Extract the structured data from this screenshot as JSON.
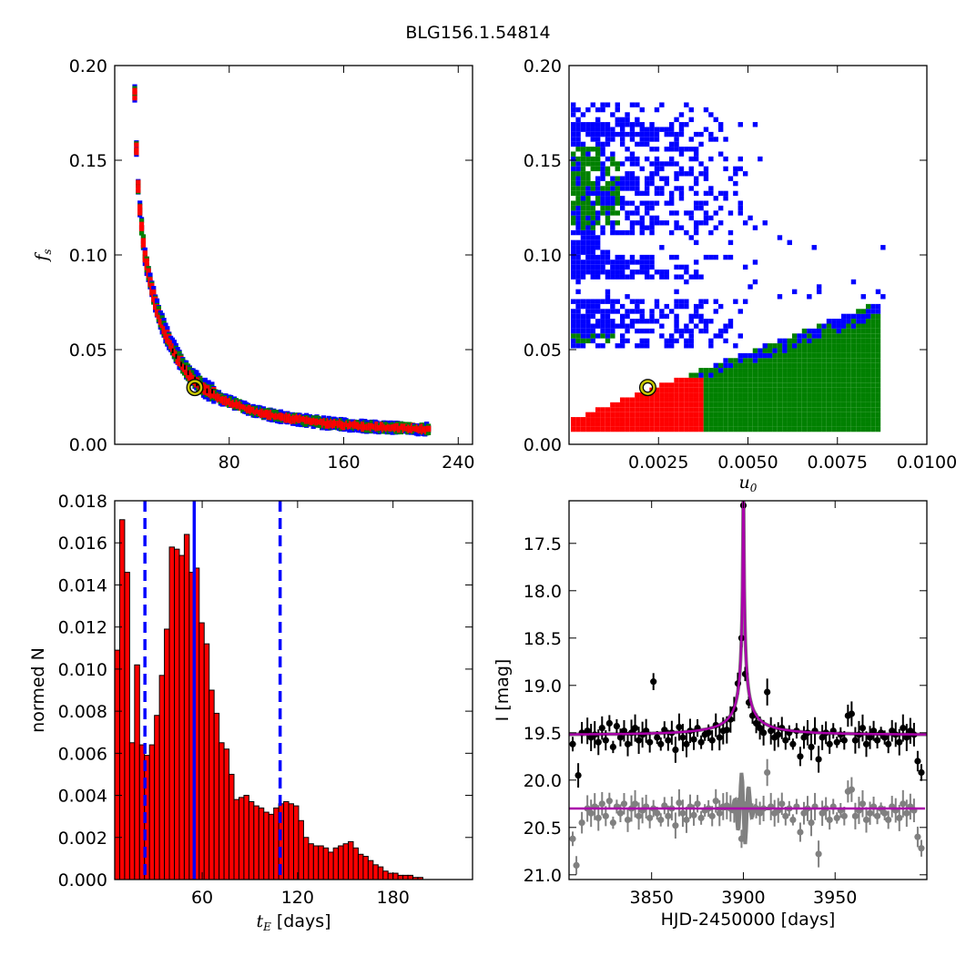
{
  "figure": {
    "title": "BLG156.1.54814"
  },
  "chart_data": [
    {
      "panel": "top-left",
      "type": "heatmap",
      "xlabel": "",
      "ylabel": "f_s",
      "xlim": [
        0,
        250
      ],
      "ylim": [
        0,
        0.2
      ],
      "xticks": [
        80,
        160,
        240
      ],
      "yticks": [
        0.0,
        0.05,
        0.1,
        0.15,
        0.2
      ],
      "ytick_labels": [
        "0.00",
        "0.05",
        "0.10",
        "0.15",
        "0.20"
      ],
      "description_colors": {
        "sigma3": "#0000ff",
        "sigma2": "#008000",
        "sigma1": "#ff0000",
        "core": "#000000"
      },
      "best_fit": {
        "x": 56,
        "y": 0.03
      },
      "ridge": [
        {
          "x": 14,
          "y": 0.185
        },
        {
          "x": 15,
          "y": 0.16
        },
        {
          "x": 16,
          "y": 0.14
        },
        {
          "x": 18,
          "y": 0.12
        },
        {
          "x": 21,
          "y": 0.1
        },
        {
          "x": 25,
          "y": 0.085
        },
        {
          "x": 30,
          "y": 0.07
        },
        {
          "x": 36,
          "y": 0.058
        },
        {
          "x": 44,
          "y": 0.046
        },
        {
          "x": 52,
          "y": 0.037
        },
        {
          "x": 62,
          "y": 0.03
        },
        {
          "x": 75,
          "y": 0.024
        },
        {
          "x": 95,
          "y": 0.018
        },
        {
          "x": 120,
          "y": 0.014
        },
        {
          "x": 150,
          "y": 0.011
        },
        {
          "x": 185,
          "y": 0.009
        },
        {
          "x": 220,
          "y": 0.008
        }
      ]
    },
    {
      "panel": "top-right",
      "type": "heatmap",
      "xlabel": "u_0",
      "ylabel": "",
      "xlim": [
        0,
        0.01
      ],
      "ylim": [
        0,
        0.2
      ],
      "xticks": [
        0.0025,
        0.005,
        0.0075,
        0.01
      ],
      "xtick_labels": [
        "0.0025",
        "0.0050",
        "0.0075",
        "0.0100"
      ],
      "yticks": [
        0.0,
        0.05,
        0.1,
        0.15,
        0.2
      ],
      "ytick_labels": [
        "0.00",
        "0.05",
        "0.10",
        "0.15",
        "0.20"
      ],
      "best_fit": {
        "x": 0.0022,
        "y": 0.03
      }
    },
    {
      "panel": "bottom-left",
      "type": "bar",
      "xlabel": "t_E [days]",
      "xlabel_unit": "[days]",
      "ylabel": "normed N",
      "xlim": [
        5,
        230
      ],
      "ylim": [
        0,
        0.018
      ],
      "xticks": [
        60,
        120,
        180
      ],
      "yticks": [
        0.0,
        0.002,
        0.004,
        0.006,
        0.008,
        0.01,
        0.012,
        0.014,
        0.016,
        0.018
      ],
      "ytick_labels": [
        "0.000",
        "0.002",
        "0.004",
        "0.006",
        "0.008",
        "0.010",
        "0.012",
        "0.014",
        "0.016",
        "0.018"
      ],
      "bin_start": 5,
      "bin_width": 3.125,
      "values": [
        0.0109,
        0.0171,
        0.0146,
        0.0065,
        0.0102,
        0.0064,
        0.0059,
        0.0064,
        0.0078,
        0.0097,
        0.0119,
        0.0158,
        0.0157,
        0.0154,
        0.0164,
        0.0146,
        0.0148,
        0.0122,
        0.0112,
        0.009,
        0.0079,
        0.0065,
        0.0062,
        0.005,
        0.0038,
        0.0039,
        0.004,
        0.0037,
        0.0035,
        0.0034,
        0.0032,
        0.0031,
        0.0034,
        0.0036,
        0.0037,
        0.0036,
        0.0035,
        0.0028,
        0.002,
        0.0017,
        0.0016,
        0.0016,
        0.0015,
        0.0013,
        0.0015,
        0.0016,
        0.0017,
        0.0018,
        0.0015,
        0.0012,
        0.0011,
        0.0009,
        0.0007,
        0.0006,
        0.0004,
        0.0003,
        0.0003,
        0.0002,
        0.0002,
        0.0002,
        0.0001,
        0.0001
      ],
      "vlines": [
        {
          "x": 24,
          "style": "dashed",
          "color": "#0000ff"
        },
        {
          "x": 55,
          "style": "solid",
          "color": "#0000ff"
        },
        {
          "x": 109,
          "style": "dashed",
          "color": "#0000ff"
        }
      ],
      "bar_color": "#ff0000"
    },
    {
      "panel": "bottom-right",
      "type": "scatter",
      "xlabel": "HJD-2450000 [days]",
      "ylabel": "I [mag]",
      "xlim": [
        3805,
        4000
      ],
      "ylim": [
        21.05,
        17.05
      ],
      "xticks": [
        3850,
        3900,
        3950
      ],
      "yticks": [
        17.5,
        18.0,
        18.5,
        19.0,
        19.5,
        20.0,
        20.5,
        21.0
      ],
      "ytick_labels": [
        "17.5",
        "18.0",
        "18.5",
        "19.0",
        "19.5",
        "20.0",
        "20.5",
        "21.0"
      ],
      "model": {
        "t0": 3900,
        "tE": 55,
        "u0": 0.0022,
        "fs": 0.03,
        "base_mag": 19.52,
        "color": "#aa00aa"
      },
      "model_offset": {
        "base_mag": 20.3,
        "color": "#aa00aa"
      },
      "series": [
        {
          "name": "",
          "color": "#000000",
          "points": [
            [
              3807,
              19.62
            ],
            [
              3810,
              19.95
            ],
            [
              3812,
              19.5
            ],
            [
              3815,
              19.48
            ],
            [
              3817,
              19.55
            ],
            [
              3819,
              19.52
            ],
            [
              3821,
              19.6
            ],
            [
              3823,
              19.45
            ],
            [
              3825,
              19.58
            ],
            [
              3827,
              19.4
            ],
            [
              3829,
              19.65
            ],
            [
              3831,
              19.43
            ],
            [
              3833,
              19.55
            ],
            [
              3835,
              19.48
            ],
            [
              3837,
              19.62
            ],
            [
              3839,
              19.5
            ],
            [
              3841,
              19.45
            ],
            [
              3843,
              19.58
            ],
            [
              3845,
              19.52
            ],
            [
              3847,
              19.48
            ],
            [
              3849,
              19.6
            ],
            [
              3851,
              18.96
            ],
            [
              3853,
              19.55
            ],
            [
              3855,
              19.62
            ],
            [
              3857,
              19.47
            ],
            [
              3859,
              19.58
            ],
            [
              3861,
              19.5
            ],
            [
              3863,
              19.68
            ],
            [
              3865,
              19.44
            ],
            [
              3867,
              19.55
            ],
            [
              3869,
              19.62
            ],
            [
              3871,
              19.48
            ],
            [
              3873,
              19.57
            ],
            [
              3875,
              19.45
            ],
            [
              3877,
              19.6
            ],
            [
              3879,
              19.52
            ],
            [
              3881,
              19.5
            ],
            [
              3883,
              19.58
            ],
            [
              3885,
              19.42
            ],
            [
              3887,
              19.55
            ],
            [
              3889,
              19.48
            ],
            [
              3891,
              19.47
            ],
            [
              3893,
              19.36
            ],
            [
              3895,
              19.25
            ],
            [
              3897,
              18.98
            ],
            [
              3899,
              18.5
            ],
            [
              3900,
              17.1
            ],
            [
              3901,
              18.88
            ],
            [
              3903,
              19.18
            ],
            [
              3905,
              19.32
            ],
            [
              3907,
              19.4
            ],
            [
              3909,
              19.45
            ],
            [
              3911,
              19.5
            ],
            [
              3913,
              19.07
            ],
            [
              3915,
              19.48
            ],
            [
              3917,
              19.55
            ],
            [
              3919,
              19.52
            ],
            [
              3921,
              19.45
            ],
            [
              3923,
              19.58
            ],
            [
              3925,
              19.5
            ],
            [
              3927,
              19.62
            ],
            [
              3929,
              19.48
            ],
            [
              3931,
              19.75
            ],
            [
              3933,
              19.55
            ],
            [
              3935,
              19.5
            ],
            [
              3937,
              19.65
            ],
            [
              3939,
              19.48
            ],
            [
              3941,
              19.78
            ],
            [
              3943,
              19.55
            ],
            [
              3945,
              19.5
            ],
            [
              3947,
              19.62
            ],
            [
              3949,
              19.48
            ],
            [
              3951,
              19.6
            ],
            [
              3953,
              19.52
            ],
            [
              3955,
              19.58
            ],
            [
              3957,
              19.32
            ],
            [
              3959,
              19.3
            ],
            [
              3961,
              19.58
            ],
            [
              3963,
              19.52
            ],
            [
              3965,
              19.45
            ],
            [
              3967,
              19.62
            ],
            [
              3969,
              19.55
            ],
            [
              3971,
              19.48
            ],
            [
              3973,
              19.58
            ],
            [
              3975,
              19.5
            ],
            [
              3977,
              19.55
            ],
            [
              3979,
              19.62
            ],
            [
              3981,
              19.48
            ],
            [
              3983,
              19.52
            ],
            [
              3985,
              19.6
            ],
            [
              3987,
              19.45
            ],
            [
              3989,
              19.55
            ],
            [
              3991,
              19.48
            ],
            [
              3993,
              19.52
            ],
            [
              3995,
              19.8
            ],
            [
              3997,
              19.92
            ]
          ]
        },
        {
          "name": "",
          "color": "#808080",
          "points": [
            [
              3807,
              20.62
            ],
            [
              3809,
              20.9
            ],
            [
              3812,
              20.45
            ],
            [
              3815,
              20.3
            ],
            [
              3817,
              20.35
            ],
            [
              3819,
              20.28
            ],
            [
              3821,
              20.4
            ],
            [
              3823,
              20.25
            ],
            [
              3825,
              20.38
            ],
            [
              3827,
              20.22
            ],
            [
              3829,
              20.45
            ],
            [
              3831,
              20.28
            ],
            [
              3833,
              20.35
            ],
            [
              3835,
              20.25
            ],
            [
              3837,
              20.42
            ],
            [
              3839,
              20.3
            ],
            [
              3841,
              20.25
            ],
            [
              3843,
              20.38
            ],
            [
              3845,
              20.32
            ],
            [
              3847,
              20.28
            ],
            [
              3849,
              20.4
            ],
            [
              3851,
              20.3
            ],
            [
              3853,
              20.35
            ],
            [
              3855,
              20.42
            ],
            [
              3857,
              20.27
            ],
            [
              3859,
              20.38
            ],
            [
              3861,
              20.3
            ],
            [
              3863,
              20.48
            ],
            [
              3865,
              20.24
            ],
            [
              3867,
              20.35
            ],
            [
              3869,
              20.42
            ],
            [
              3871,
              20.28
            ],
            [
              3873,
              20.37
            ],
            [
              3875,
              20.25
            ],
            [
              3877,
              20.4
            ],
            [
              3879,
              20.32
            ],
            [
              3881,
              20.3
            ],
            [
              3883,
              20.38
            ],
            [
              3885,
              20.22
            ],
            [
              3887,
              20.35
            ],
            [
              3889,
              20.28
            ],
            [
              3891,
              20.27
            ],
            [
              3893,
              20.3
            ],
            [
              3895,
              20.32
            ],
            [
              3897,
              20.3
            ],
            [
              3899,
              20.62
            ],
            [
              3901,
              20.3
            ],
            [
              3903,
              20.28
            ],
            [
              3905,
              20.33
            ],
            [
              3907,
              20.3
            ],
            [
              3909,
              20.35
            ],
            [
              3911,
              20.3
            ],
            [
              3913,
              19.92
            ],
            [
              3915,
              20.28
            ],
            [
              3917,
              20.35
            ],
            [
              3919,
              20.32
            ],
            [
              3921,
              20.25
            ],
            [
              3923,
              20.38
            ],
            [
              3925,
              20.3
            ],
            [
              3927,
              20.42
            ],
            [
              3929,
              20.28
            ],
            [
              3931,
              20.55
            ],
            [
              3933,
              20.35
            ],
            [
              3935,
              20.3
            ],
            [
              3937,
              20.45
            ],
            [
              3939,
              20.28
            ],
            [
              3941,
              20.78
            ],
            [
              3943,
              20.35
            ],
            [
              3945,
              20.3
            ],
            [
              3947,
              20.42
            ],
            [
              3949,
              20.28
            ],
            [
              3951,
              20.4
            ],
            [
              3953,
              20.32
            ],
            [
              3955,
              20.38
            ],
            [
              3957,
              20.12
            ],
            [
              3959,
              20.1
            ],
            [
              3961,
              20.38
            ],
            [
              3963,
              20.32
            ],
            [
              3965,
              20.25
            ],
            [
              3967,
              20.42
            ],
            [
              3969,
              20.35
            ],
            [
              3971,
              20.28
            ],
            [
              3973,
              20.38
            ],
            [
              3975,
              20.3
            ],
            [
              3977,
              20.35
            ],
            [
              3979,
              20.42
            ],
            [
              3981,
              20.28
            ],
            [
              3983,
              20.32
            ],
            [
              3985,
              20.4
            ],
            [
              3987,
              20.25
            ],
            [
              3989,
              20.35
            ],
            [
              3991,
              20.28
            ],
            [
              3993,
              20.32
            ],
            [
              3995,
              20.6
            ],
            [
              3997,
              20.72
            ]
          ]
        }
      ]
    }
  ]
}
